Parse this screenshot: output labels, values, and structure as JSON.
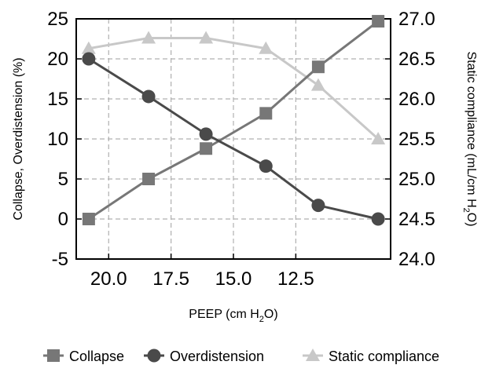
{
  "chart_data": {
    "type": "line",
    "x": [
      20.8,
      18.4,
      16.1,
      13.7,
      11.6,
      9.2
    ],
    "xlabel": "PEEP (cm H2O)",
    "xlabel_parts": {
      "before": "PEEP (cm H",
      "sub": "2",
      "after": "O)"
    },
    "xlim": [
      21.3,
      8.7
    ],
    "x_ticks": [
      "20.0",
      "17.5",
      "15.0",
      "12.5"
    ],
    "x_tick_values": [
      20.0,
      17.5,
      15.0,
      12.5
    ],
    "ylabel_left": "Collapse, Overdistension (%)",
    "ylim_left": [
      -5,
      25
    ],
    "y_ticks_left": [
      "-5",
      "0",
      "5",
      "10",
      "15",
      "20",
      "25"
    ],
    "y_tick_values_left": [
      -5,
      0,
      5,
      10,
      15,
      20,
      25
    ],
    "ylabel_right": "Static compliance (mL/cm H2O)",
    "ylabel_right_parts": {
      "before": "Static compliance (mL/cm H",
      "sub": "2",
      "after": "O)"
    },
    "ylim_right": [
      24.0,
      27.0
    ],
    "y_ticks_right": [
      "24.0",
      "24.5",
      "25.0",
      "25.5",
      "26.0",
      "26.5",
      "27.0"
    ],
    "y_tick_values_right": [
      24.0,
      24.5,
      25.0,
      25.5,
      26.0,
      26.5,
      27.0
    ],
    "grid": true,
    "legend_position": "bottom",
    "series": [
      {
        "name": "Collapse",
        "axis": "left",
        "marker": "square",
        "color": "#777777",
        "values": [
          0,
          5,
          8.8,
          13.2,
          19,
          24.7
        ]
      },
      {
        "name": "Overdistension",
        "axis": "left",
        "marker": "circle",
        "color": "#4a4a4a",
        "values": [
          20,
          15.3,
          10.6,
          6.6,
          1.7,
          0
        ]
      },
      {
        "name": "Static compliance",
        "axis": "right",
        "marker": "triangle",
        "color": "#c8c8c8",
        "values": [
          26.63,
          26.76,
          26.76,
          26.63,
          26.17,
          25.5
        ]
      }
    ]
  }
}
